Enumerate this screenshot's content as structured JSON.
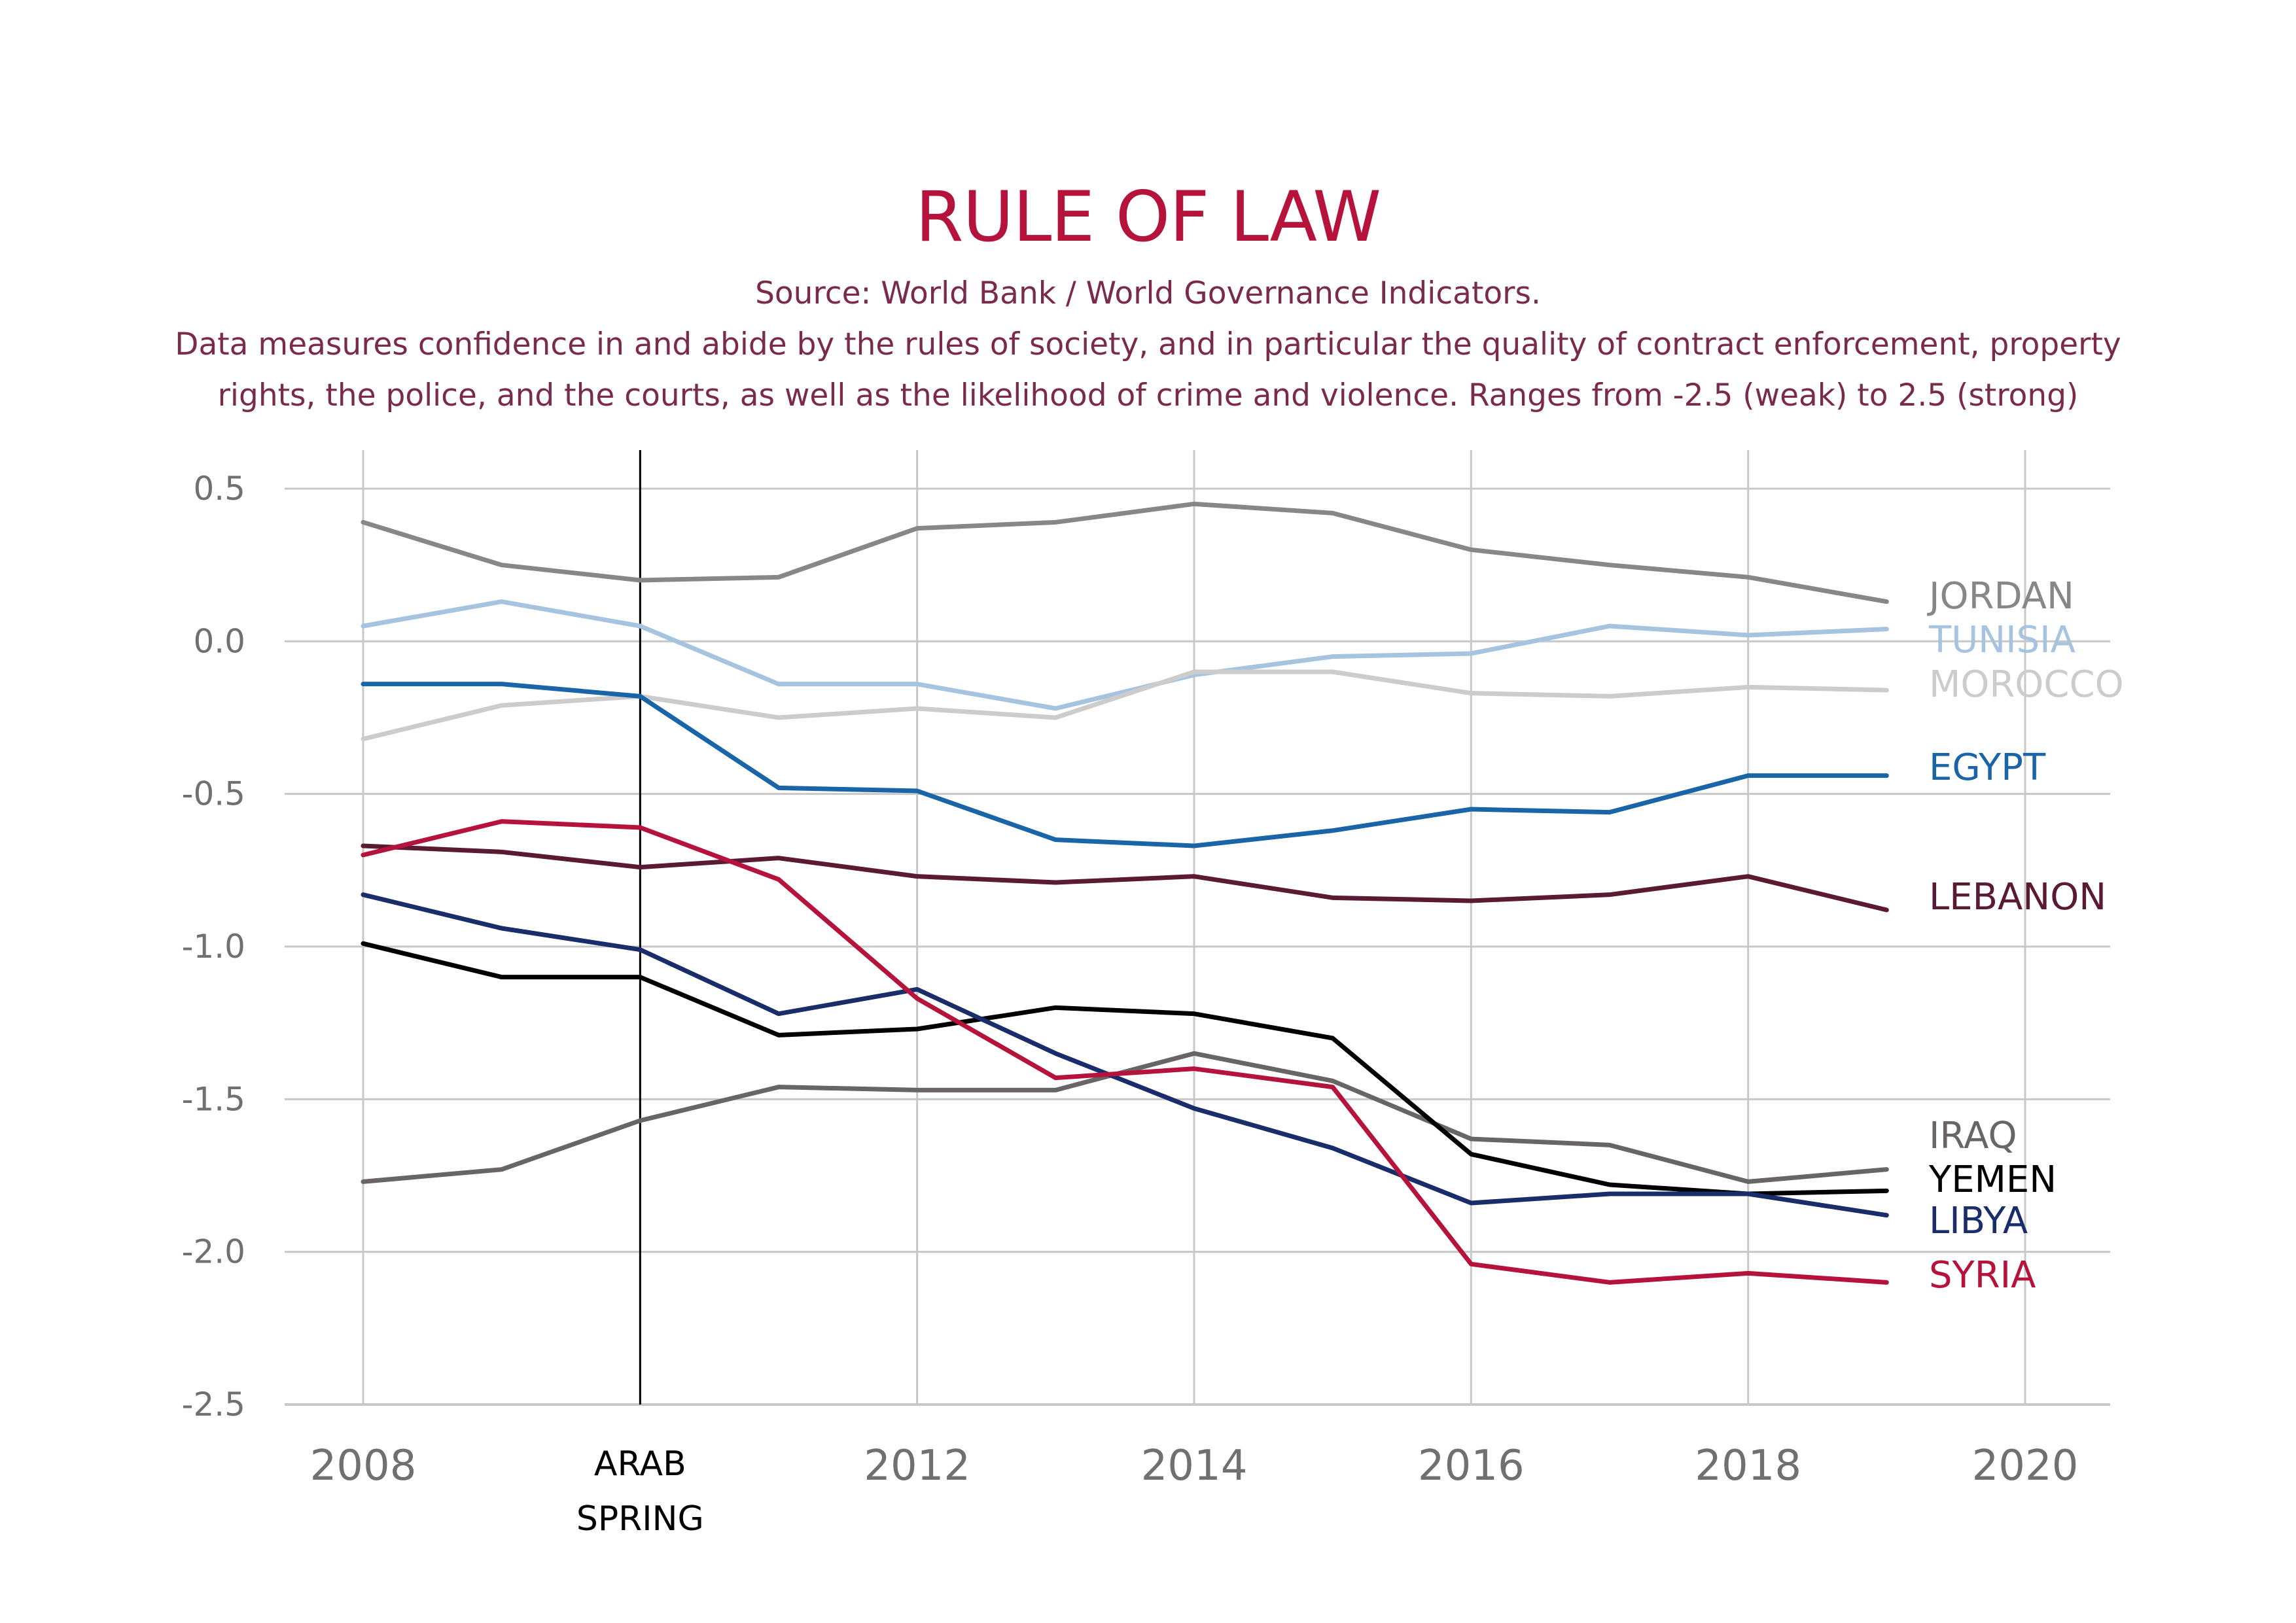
{
  "chart_data": {
    "type": "line",
    "title": "RULE OF LAW",
    "subtitle_lines": [
      "Source: World Bank / World Governance Indicators.",
      "Data measures confidence in and abide by the rules of society, and in particular the quality of contract enforcement, property",
      "rights, the police, and the courts, as well as the likelihood of crime and violence. Ranges from -2.5 (weak) to 2.5 (strong)"
    ],
    "xlabel": "",
    "ylabel": "",
    "xlim": [
      2008,
      2020
    ],
    "ylim": [
      -2.5,
      0.5
    ],
    "x_ticks": [
      "2008",
      "2012",
      "2014",
      "2016",
      "2018",
      "2020"
    ],
    "x_tick_values": [
      2008,
      2012,
      2014,
      2016,
      2018,
      2020
    ],
    "y_ticks": [
      "0.5",
      "0.0",
      "-0.5",
      "-1.0",
      "-1.5",
      "-2.0",
      "-2.5"
    ],
    "y_tick_values": [
      0.5,
      0.0,
      -0.5,
      -1.0,
      -1.5,
      -2.0,
      -2.5
    ],
    "grid": true,
    "annotation": {
      "x": 2010,
      "text_lines": [
        "ARAB",
        "SPRING"
      ],
      "color": "#000000"
    },
    "x": [
      2008,
      2009,
      2010,
      2011,
      2012,
      2013,
      2014,
      2015,
      2016,
      2017,
      2018,
      2019
    ],
    "series": [
      {
        "name": "JORDAN",
        "color": "#878787",
        "values": [
          0.39,
          0.25,
          0.2,
          0.21,
          0.37,
          0.39,
          0.45,
          0.42,
          0.3,
          0.25,
          0.21,
          0.13
        ]
      },
      {
        "name": "TUNISIA",
        "color": "#a6c3df",
        "values": [
          0.05,
          0.13,
          0.05,
          -0.14,
          -0.14,
          -0.22,
          -0.11,
          -0.05,
          -0.04,
          0.05,
          0.02,
          0.04
        ]
      },
      {
        "name": "MOROCCO",
        "color": "#cccccc",
        "values": [
          -0.32,
          -0.21,
          -0.18,
          -0.25,
          -0.22,
          -0.25,
          -0.1,
          -0.1,
          -0.17,
          -0.18,
          -0.15,
          -0.16
        ]
      },
      {
        "name": "EGYPT",
        "color": "#1a64a8",
        "values": [
          -0.14,
          -0.14,
          -0.18,
          -0.48,
          -0.49,
          -0.65,
          -0.67,
          -0.62,
          -0.55,
          -0.56,
          -0.44,
          -0.44
        ]
      },
      {
        "name": "LEBANON",
        "color": "#5b1a33",
        "values": [
          -0.67,
          -0.69,
          -0.74,
          -0.71,
          -0.77,
          -0.79,
          -0.77,
          -0.84,
          -0.85,
          -0.83,
          -0.77,
          -0.88
        ]
      },
      {
        "name": "IRAQ",
        "color": "#696565",
        "values": [
          -1.77,
          -1.73,
          -1.57,
          -1.46,
          -1.47,
          -1.47,
          -1.35,
          -1.44,
          -1.63,
          -1.65,
          -1.77,
          -1.73
        ]
      },
      {
        "name": "YEMEN",
        "color": "#000000",
        "values": [
          -0.99,
          -1.1,
          -1.1,
          -1.29,
          -1.27,
          -1.2,
          -1.22,
          -1.3,
          -1.68,
          -1.78,
          -1.81,
          -1.8
        ]
      },
      {
        "name": "LIBYA",
        "color": "#1a2d6b",
        "values": [
          -0.83,
          -0.94,
          -1.01,
          -1.22,
          -1.14,
          -1.35,
          -1.53,
          -1.66,
          -1.84,
          -1.81,
          -1.81,
          -1.88
        ]
      },
      {
        "name": "SYRIA",
        "color": "#b5123c",
        "values": [
          -0.7,
          -0.59,
          -0.61,
          -0.78,
          -1.17,
          -1.43,
          -1.4,
          -1.46,
          -2.04,
          -2.1,
          -2.07,
          -2.1
        ]
      }
    ]
  }
}
